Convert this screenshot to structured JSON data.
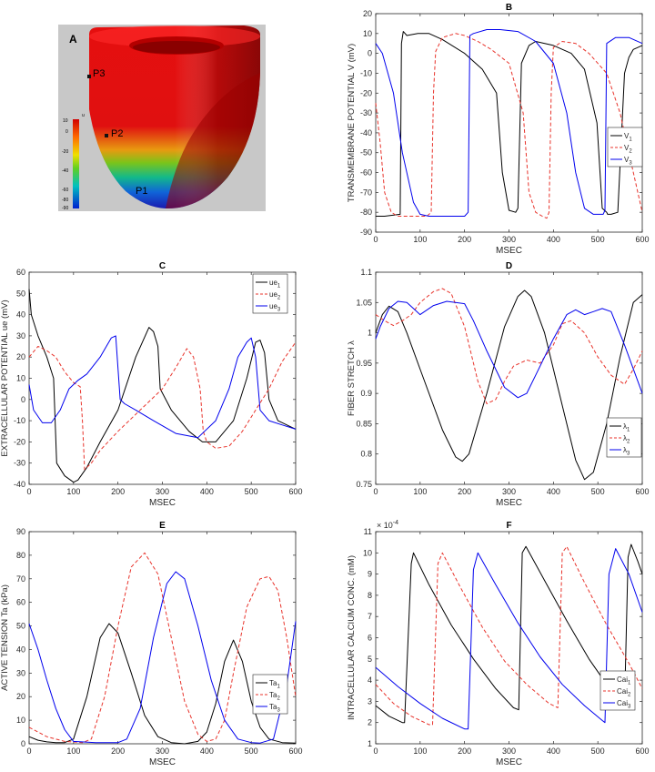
{
  "heart_panel": {
    "panel_letter": "A",
    "points": [
      "P3",
      "P2",
      "P1"
    ],
    "colorbar_ticks": [
      "10",
      "0",
      "-20",
      "-40",
      "-60",
      "-80",
      "-90"
    ],
    "colorbar_unit": "u",
    "colors": {
      "background": "#c8c8c8",
      "tissue": "#e50f0f",
      "tissue_dark": "#a80000"
    }
  },
  "chart_data": [
    {
      "type": "line",
      "panel": "B",
      "xlabel": "MSEC",
      "ylabel": "TRANSMEMBRANE POTENTIAL V (mV)",
      "xlim": [
        0,
        600
      ],
      "ylim": [
        -90,
        20
      ],
      "xticks": [
        0,
        100,
        200,
        300,
        400,
        500,
        600
      ],
      "yticks": [
        -90,
        -80,
        -70,
        -60,
        -50,
        -40,
        -30,
        -20,
        -10,
        0,
        10,
        20
      ],
      "legend_position": "right",
      "series": [
        {
          "name": "V",
          "sub": "1",
          "color": "#000000",
          "dash": false,
          "x": [
            0,
            20,
            55,
            58,
            62,
            70,
            95,
            120,
            150,
            200,
            240,
            272,
            285,
            300,
            315,
            320,
            328,
            345,
            360,
            400,
            440,
            470,
            498,
            510,
            520,
            522,
            530,
            545,
            560,
            570,
            580,
            600
          ],
          "y": [
            -82,
            -82,
            -81,
            5,
            11,
            9,
            10,
            10,
            7,
            0,
            -8,
            -20,
            -60,
            -79,
            -80,
            -78,
            -5,
            4,
            6,
            4,
            0,
            -8,
            -35,
            -78,
            -80,
            -81,
            -81,
            -80,
            -10,
            -2,
            2,
            4
          ]
        },
        {
          "name": "V",
          "sub": "2",
          "color": "#e8332b",
          "dash": true,
          "x": [
            0,
            10,
            20,
            35,
            50,
            80,
            115,
            125,
            130,
            135,
            150,
            180,
            200,
            230,
            260,
            300,
            332,
            345,
            360,
            375,
            385,
            390,
            395,
            400,
            420,
            450,
            480,
            520,
            550,
            580,
            600
          ],
          "y": [
            -25,
            -45,
            -70,
            -80,
            -82,
            -82,
            -82,
            -80,
            -20,
            1,
            8,
            10,
            9,
            6,
            2,
            -5,
            -30,
            -70,
            -80,
            -82,
            -83,
            -80,
            -20,
            3,
            6,
            5,
            0,
            -10,
            -30,
            -60,
            -80
          ]
        },
        {
          "name": "V",
          "sub": "3",
          "color": "#0000ee",
          "dash": false,
          "x": [
            0,
            15,
            40,
            60,
            85,
            100,
            120,
            150,
            200,
            208,
            212,
            220,
            250,
            280,
            320,
            360,
            400,
            430,
            450,
            470,
            490,
            512,
            516,
            520,
            540,
            570,
            600
          ],
          "y": [
            5,
            0,
            -20,
            -50,
            -75,
            -81,
            -82,
            -82,
            -82,
            -80,
            9,
            10,
            12,
            12,
            11,
            6,
            -5,
            -30,
            -60,
            -78,
            -81,
            -81,
            -79,
            5,
            8,
            8,
            5
          ]
        }
      ]
    },
    {
      "type": "line",
      "panel": "C",
      "xlabel": "MSEC",
      "ylabel": "EXTRACELLULAR POTENTIAL ue (mV)",
      "xlim": [
        0,
        600
      ],
      "ylim": [
        -40,
        60
      ],
      "xticks": [
        0,
        100,
        200,
        300,
        400,
        500,
        600
      ],
      "yticks": [
        -40,
        -30,
        -20,
        -10,
        0,
        10,
        20,
        30,
        40,
        50,
        60
      ],
      "legend_position": "top-right",
      "series": [
        {
          "name": "ue",
          "sub": "1",
          "color": "#000000",
          "dash": false,
          "x": [
            0,
            5,
            20,
            40,
            55,
            62,
            80,
            100,
            110,
            130,
            160,
            200,
            240,
            270,
            280,
            290,
            295,
            320,
            360,
            390,
            420,
            460,
            490,
            510,
            520,
            530,
            540,
            560,
            600
          ],
          "y": [
            52,
            40,
            30,
            20,
            10,
            -30,
            -36,
            -39,
            -38,
            -32,
            -20,
            -5,
            20,
            34,
            32,
            25,
            5,
            -5,
            -15,
            -20,
            -20,
            -10,
            10,
            27,
            28,
            22,
            0,
            -10,
            -14
          ]
        },
        {
          "name": "ue",
          "sub": "2",
          "color": "#e8332b",
          "dash": true,
          "x": [
            0,
            20,
            40,
            60,
            80,
            100,
            115,
            120,
            125,
            140,
            160,
            200,
            250,
            300,
            330,
            355,
            370,
            385,
            392,
            400,
            420,
            450,
            480,
            510,
            540,
            570,
            600
          ],
          "y": [
            20,
            25,
            23,
            20,
            13,
            8,
            6,
            -10,
            -33,
            -30,
            -24,
            -15,
            -5,
            5,
            15,
            24,
            20,
            5,
            -15,
            -20,
            -23,
            -22,
            -15,
            -5,
            5,
            18,
            27
          ]
        },
        {
          "name": "ue",
          "sub": "3",
          "color": "#0000ee",
          "dash": false,
          "x": [
            0,
            10,
            30,
            50,
            70,
            90,
            110,
            130,
            160,
            185,
            195,
            205,
            215,
            240,
            280,
            330,
            380,
            420,
            450,
            470,
            490,
            500,
            510,
            520,
            540,
            570,
            600
          ],
          "y": [
            7,
            -5,
            -11,
            -11,
            -5,
            5,
            9,
            12,
            20,
            29,
            30,
            0,
            -2,
            -5,
            -10,
            -16,
            -18,
            -10,
            5,
            20,
            27,
            29,
            20,
            -5,
            -10,
            -12,
            -14
          ]
        }
      ]
    },
    {
      "type": "line",
      "panel": "D",
      "xlabel": "MSEC",
      "ylabel": "FIBER STRETCH λ",
      "xlim": [
        0,
        600
      ],
      "ylim": [
        0.75,
        1.1
      ],
      "xticks": [
        0,
        100,
        200,
        300,
        400,
        500,
        600
      ],
      "yticks": [
        0.75,
        0.8,
        0.85,
        0.9,
        0.95,
        1,
        1.05,
        1.1
      ],
      "legend_position": "right",
      "series": [
        {
          "name": "λ",
          "sub": "1",
          "color": "#000000",
          "dash": false,
          "x": [
            0,
            15,
            30,
            50,
            70,
            100,
            150,
            180,
            195,
            210,
            250,
            290,
            320,
            335,
            350,
            380,
            420,
            450,
            470,
            490,
            520,
            550,
            580,
            600
          ],
          "y": [
            1.0,
            1.03,
            1.044,
            1.035,
            1.0,
            0.94,
            0.84,
            0.795,
            0.788,
            0.8,
            0.9,
            1.01,
            1.06,
            1.07,
            1.06,
            1.0,
            0.88,
            0.79,
            0.758,
            0.77,
            0.85,
            0.96,
            1.05,
            1.063
          ]
        },
        {
          "name": "λ",
          "sub": "2",
          "color": "#e8332b",
          "dash": true,
          "x": [
            0,
            20,
            40,
            60,
            80,
            100,
            130,
            150,
            170,
            200,
            230,
            250,
            270,
            290,
            310,
            340,
            370,
            400,
            420,
            440,
            470,
            500,
            530,
            560,
            580,
            600
          ],
          "y": [
            1.03,
            1.02,
            1.012,
            1.02,
            1.03,
            1.05,
            1.068,
            1.073,
            1.065,
            1.01,
            0.92,
            0.883,
            0.89,
            0.92,
            0.945,
            0.955,
            0.95,
            0.98,
            1.015,
            1.02,
            1.0,
            0.96,
            0.93,
            0.915,
            0.94,
            0.97
          ]
        },
        {
          "name": "λ",
          "sub": "3",
          "color": "#0000ee",
          "dash": false,
          "x": [
            0,
            10,
            30,
            50,
            70,
            85,
            100,
            130,
            160,
            200,
            220,
            250,
            290,
            320,
            340,
            360,
            400,
            430,
            450,
            470,
            490,
            510,
            530,
            560,
            600
          ],
          "y": [
            0.99,
            1.01,
            1.04,
            1.052,
            1.05,
            1.04,
            1.03,
            1.045,
            1.052,
            1.048,
            1.02,
            0.97,
            0.91,
            0.893,
            0.9,
            0.93,
            0.99,
            1.03,
            1.038,
            1.03,
            1.035,
            1.04,
            1.035,
            0.98,
            0.9
          ]
        }
      ]
    },
    {
      "type": "line",
      "panel": "E",
      "xlabel": "MSEC",
      "ylabel": "ACTIVE TENSION Ta (kPa)",
      "xlim": [
        0,
        600
      ],
      "ylim": [
        0,
        90
      ],
      "xticks": [
        0,
        100,
        200,
        300,
        400,
        500,
        600
      ],
      "yticks": [
        0,
        10,
        20,
        30,
        40,
        50,
        60,
        70,
        80,
        90
      ],
      "legend_position": "bottom-right",
      "series": [
        {
          "name": "Ta",
          "sub": "1",
          "color": "#000000",
          "dash": false,
          "x": [
            0,
            20,
            40,
            60,
            80,
            100,
            130,
            160,
            180,
            200,
            230,
            260,
            290,
            320,
            350,
            380,
            400,
            420,
            440,
            460,
            480,
            500,
            520,
            540,
            570,
            600
          ],
          "y": [
            3,
            1.5,
            0.8,
            0.5,
            0.5,
            2,
            20,
            45,
            51,
            47,
            30,
            12,
            3,
            0.5,
            0,
            1,
            5,
            17,
            35,
            44,
            35,
            18,
            7,
            2,
            0.5,
            0.3
          ]
        },
        {
          "name": "Ta",
          "sub": "2",
          "color": "#e8332b",
          "dash": true,
          "x": [
            0,
            20,
            40,
            80,
            120,
            140,
            170,
            200,
            230,
            260,
            290,
            320,
            350,
            380,
            400,
            420,
            440,
            460,
            490,
            520,
            540,
            560,
            580,
            600
          ],
          "y": [
            7,
            5,
            3,
            1,
            0.5,
            2,
            20,
            50,
            75,
            81,
            72,
            45,
            18,
            4,
            1,
            2,
            10,
            30,
            58,
            70,
            71,
            65,
            45,
            20
          ]
        },
        {
          "name": "Ta",
          "sub": "3",
          "color": "#0000ee",
          "dash": false,
          "x": [
            0,
            20,
            40,
            60,
            80,
            100,
            150,
            200,
            220,
            250,
            280,
            310,
            330,
            350,
            380,
            410,
            440,
            470,
            500,
            520,
            550,
            580,
            600
          ],
          "y": [
            51,
            40,
            27,
            15,
            6,
            1,
            0.5,
            0.5,
            2,
            15,
            45,
            68,
            73,
            70,
            50,
            27,
            10,
            2,
            0.5,
            0.3,
            2,
            25,
            52
          ]
        }
      ]
    },
    {
      "type": "line",
      "panel": "F",
      "xlabel": "MSEC",
      "ylabel": "INTRACELLULAR CALCIUM CONC. (mM)",
      "y_exponent": "× 10",
      "y_exponent_power": "-4",
      "xlim": [
        0,
        600
      ],
      "ylim": [
        1,
        11
      ],
      "xticks": [
        0,
        100,
        200,
        300,
        400,
        500,
        600
      ],
      "yticks": [
        1,
        2,
        3,
        4,
        5,
        6,
        7,
        8,
        9,
        10,
        11
      ],
      "legend_position": "right",
      "series": [
        {
          "name": "Cai",
          "sub": "1",
          "color": "#000000",
          "dash": false,
          "x": [
            0,
            30,
            60,
            65,
            80,
            85,
            120,
            170,
            220,
            270,
            310,
            322,
            330,
            338,
            380,
            430,
            480,
            520,
            550,
            560,
            568,
            575,
            590,
            600
          ],
          "y": [
            2.8,
            2.3,
            2.0,
            2.0,
            9.5,
            10,
            8.5,
            6.6,
            5.0,
            3.6,
            2.7,
            2.6,
            10,
            10.3,
            8.7,
            6.8,
            5.0,
            3.8,
            3.0,
            2.8,
            9.8,
            10.4,
            9.6,
            9
          ]
        },
        {
          "name": "Cai",
          "sub": "2",
          "color": "#e8332b",
          "dash": true,
          "x": [
            0,
            40,
            80,
            120,
            128,
            140,
            150,
            190,
            240,
            290,
            340,
            390,
            410,
            420,
            430,
            470,
            520,
            570,
            600
          ],
          "y": [
            3.8,
            2.9,
            2.3,
            1.9,
            1.9,
            9.5,
            10,
            8.4,
            6.5,
            4.9,
            3.8,
            2.9,
            2.7,
            10,
            10.3,
            8.6,
            6.6,
            4.8,
            3.6
          ]
        },
        {
          "name": "Cai",
          "sub": "3",
          "color": "#0000ee",
          "dash": false,
          "x": [
            0,
            50,
            100,
            150,
            200,
            208,
            220,
            230,
            270,
            320,
            370,
            420,
            470,
            510,
            516,
            525,
            540,
            570,
            600
          ],
          "y": [
            4.6,
            3.7,
            2.9,
            2.2,
            1.7,
            1.7,
            9.2,
            10,
            8.5,
            6.7,
            5.1,
            3.8,
            2.8,
            2.1,
            2.0,
            9.0,
            10.2,
            9.0,
            7.2
          ]
        }
      ]
    }
  ]
}
